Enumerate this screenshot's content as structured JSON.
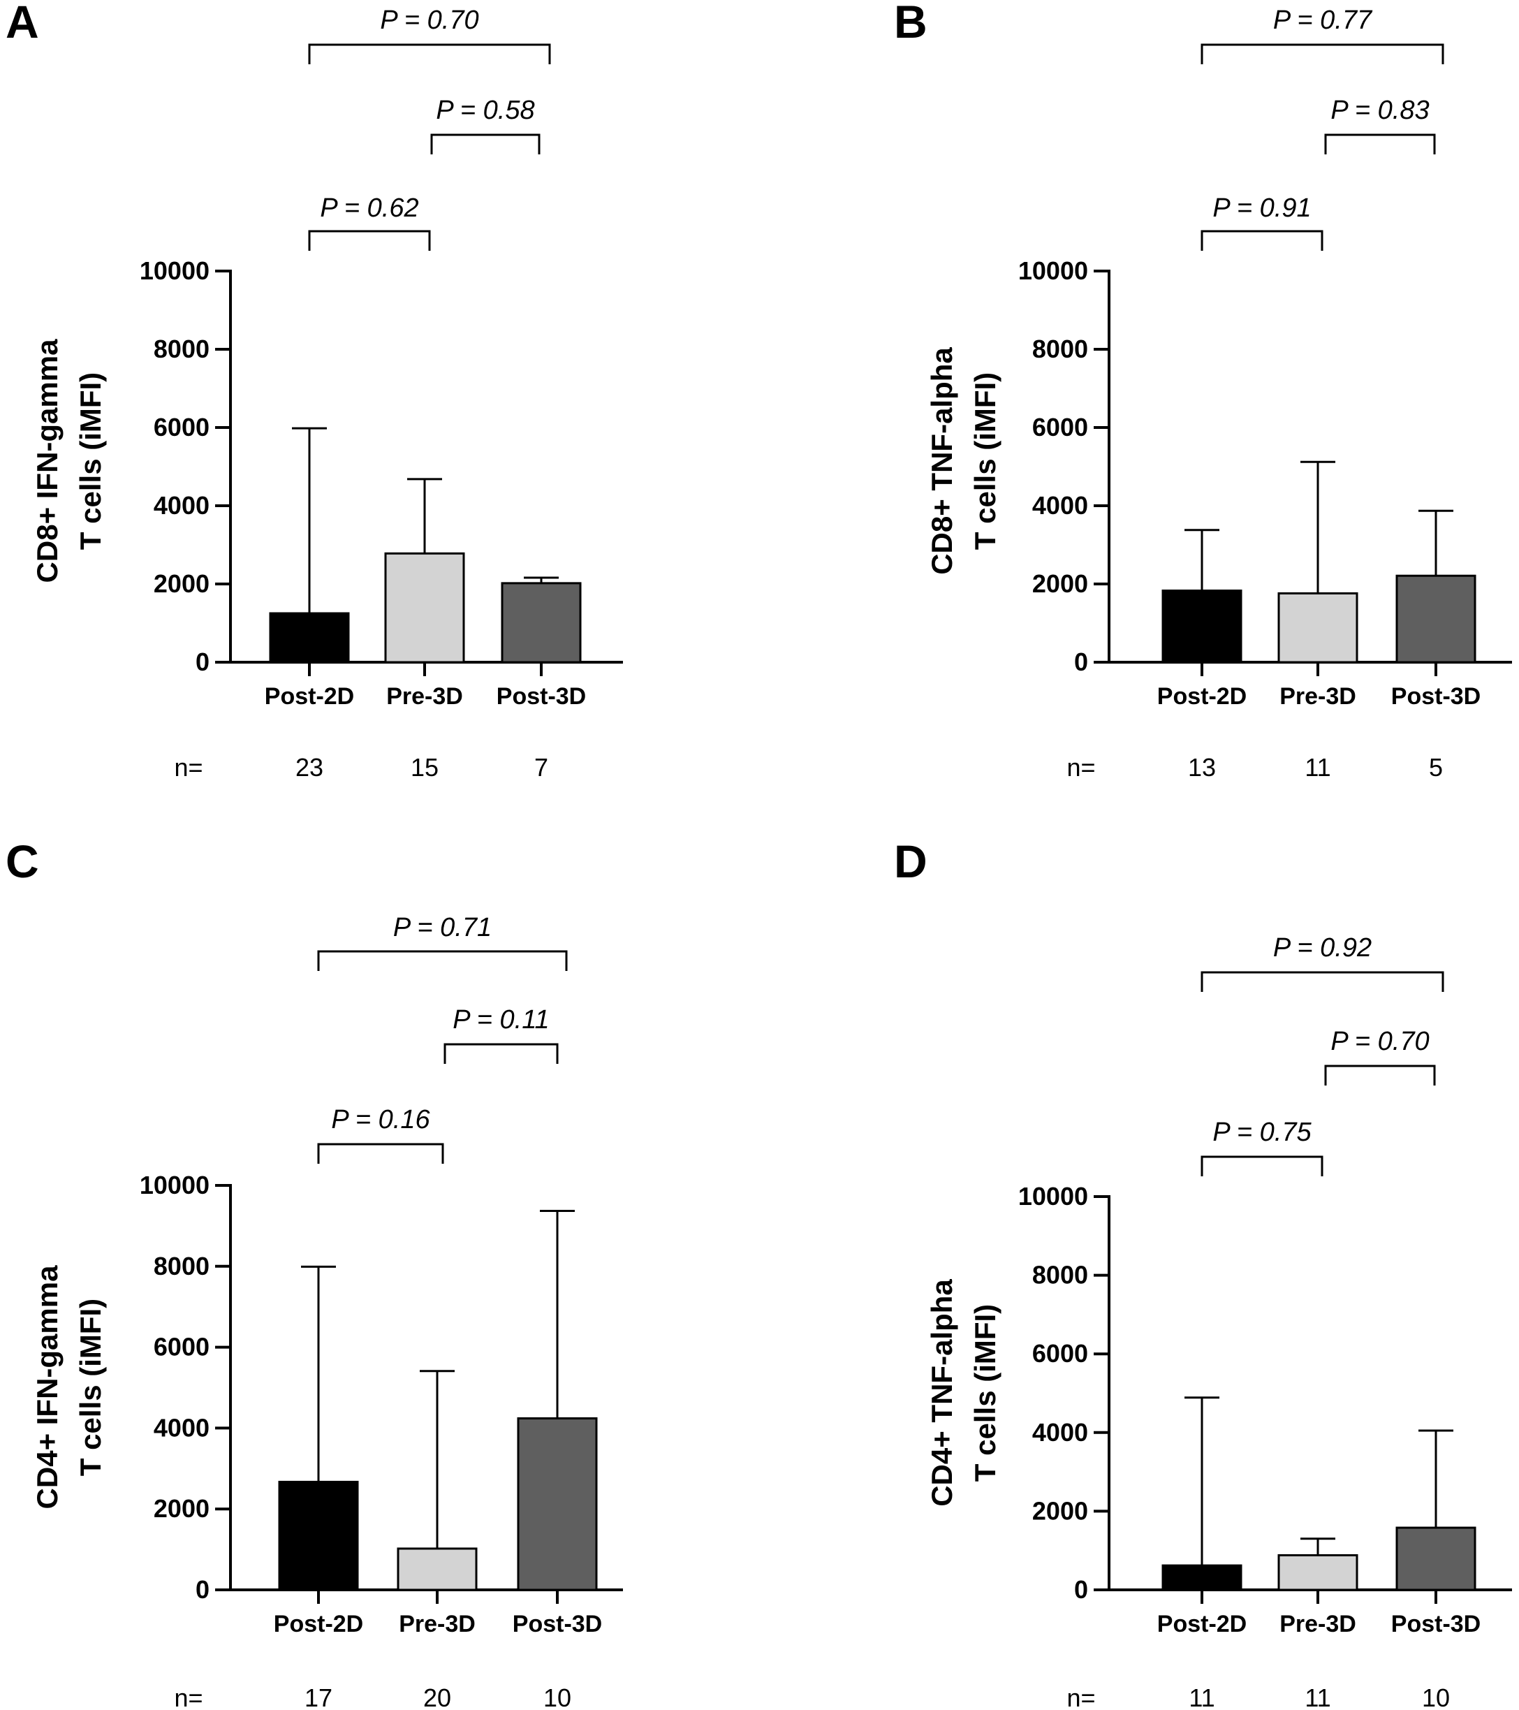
{
  "chart_data": [
    {
      "panel": "A",
      "type": "bar",
      "ylabel_lines": [
        "CD8+ IFN-gamma",
        "T cells (iMFI)"
      ],
      "ylim": [
        0,
        10000
      ],
      "yticks": [
        "0",
        "2000",
        "4000",
        "6000",
        "8000",
        "10000"
      ],
      "categories": [
        "Post-2D",
        "Pre-3D",
        "Post-3D"
      ],
      "values": [
        1250,
        2780,
        2020
      ],
      "error_upper": [
        5980,
        4680,
        2160
      ],
      "colors": [
        "#000000",
        "#d3d3d3",
        "#5f5f5f"
      ],
      "n_label": "n=",
      "n_values": [
        "23",
        "15",
        "7"
      ],
      "comparisons": [
        {
          "from": 0,
          "to": 1,
          "label": "P = 0.62"
        },
        {
          "from": 1,
          "to": 2,
          "label": "P = 0.58"
        },
        {
          "from": 0,
          "to": 2,
          "label": "P = 0.70"
        }
      ]
    },
    {
      "panel": "B",
      "type": "bar",
      "ylabel_lines": [
        "CD8+ TNF-alpha",
        "T cells (iMFI)"
      ],
      "ylim": [
        0,
        10000
      ],
      "yticks": [
        "0",
        "2000",
        "4000",
        "6000",
        "8000",
        "10000"
      ],
      "categories": [
        "Post-2D",
        "Pre-3D",
        "Post-3D"
      ],
      "values": [
        1830,
        1760,
        2210
      ],
      "error_upper": [
        3380,
        5120,
        3870
      ],
      "colors": [
        "#000000",
        "#d3d3d3",
        "#5f5f5f"
      ],
      "n_label": "n=",
      "n_values": [
        "13",
        "11",
        "5"
      ],
      "comparisons": [
        {
          "from": 0,
          "to": 1,
          "label": "P = 0.91"
        },
        {
          "from": 1,
          "to": 2,
          "label": "P = 0.83"
        },
        {
          "from": 0,
          "to": 2,
          "label": "P = 0.77"
        }
      ]
    },
    {
      "panel": "C",
      "type": "bar",
      "ylabel_lines": [
        "CD4+ IFN-gamma",
        "T cells (iMFI)"
      ],
      "ylim": [
        0,
        10000
      ],
      "yticks": [
        "0",
        "2000",
        "4000",
        "6000",
        "8000",
        "10000"
      ],
      "categories": [
        "Post-2D",
        "Pre-3D",
        "Post-3D"
      ],
      "values": [
        2670,
        1020,
        4240
      ],
      "error_upper": [
        7990,
        5410,
        9370
      ],
      "colors": [
        "#000000",
        "#d3d3d3",
        "#5f5f5f"
      ],
      "n_label": "n=",
      "n_values": [
        "17",
        "20",
        "10"
      ],
      "comparisons": [
        {
          "from": 0,
          "to": 1,
          "label": "P = 0.16"
        },
        {
          "from": 1,
          "to": 2,
          "label": "P = 0.11"
        },
        {
          "from": 0,
          "to": 2,
          "label": "P = 0.71"
        }
      ]
    },
    {
      "panel": "D",
      "type": "bar",
      "ylabel_lines": [
        "CD4+ TNF-alpha",
        "T cells (iMFI)"
      ],
      "ylim": [
        0,
        10000
      ],
      "yticks": [
        "0",
        "2000",
        "4000",
        "6000",
        "8000",
        "10000"
      ],
      "categories": [
        "Post-2D",
        "Pre-3D",
        "Post-3D"
      ],
      "values": [
        620,
        880,
        1580
      ],
      "error_upper": [
        4890,
        1300,
        4050
      ],
      "colors": [
        "#000000",
        "#d3d3d3",
        "#5f5f5f"
      ],
      "n_label": "n=",
      "n_values": [
        "11",
        "11",
        "10"
      ],
      "comparisons": [
        {
          "from": 0,
          "to": 1,
          "label": "P = 0.75"
        },
        {
          "from": 1,
          "to": 2,
          "label": "P = 0.70"
        },
        {
          "from": 0,
          "to": 2,
          "label": "P = 0.92"
        }
      ]
    }
  ]
}
